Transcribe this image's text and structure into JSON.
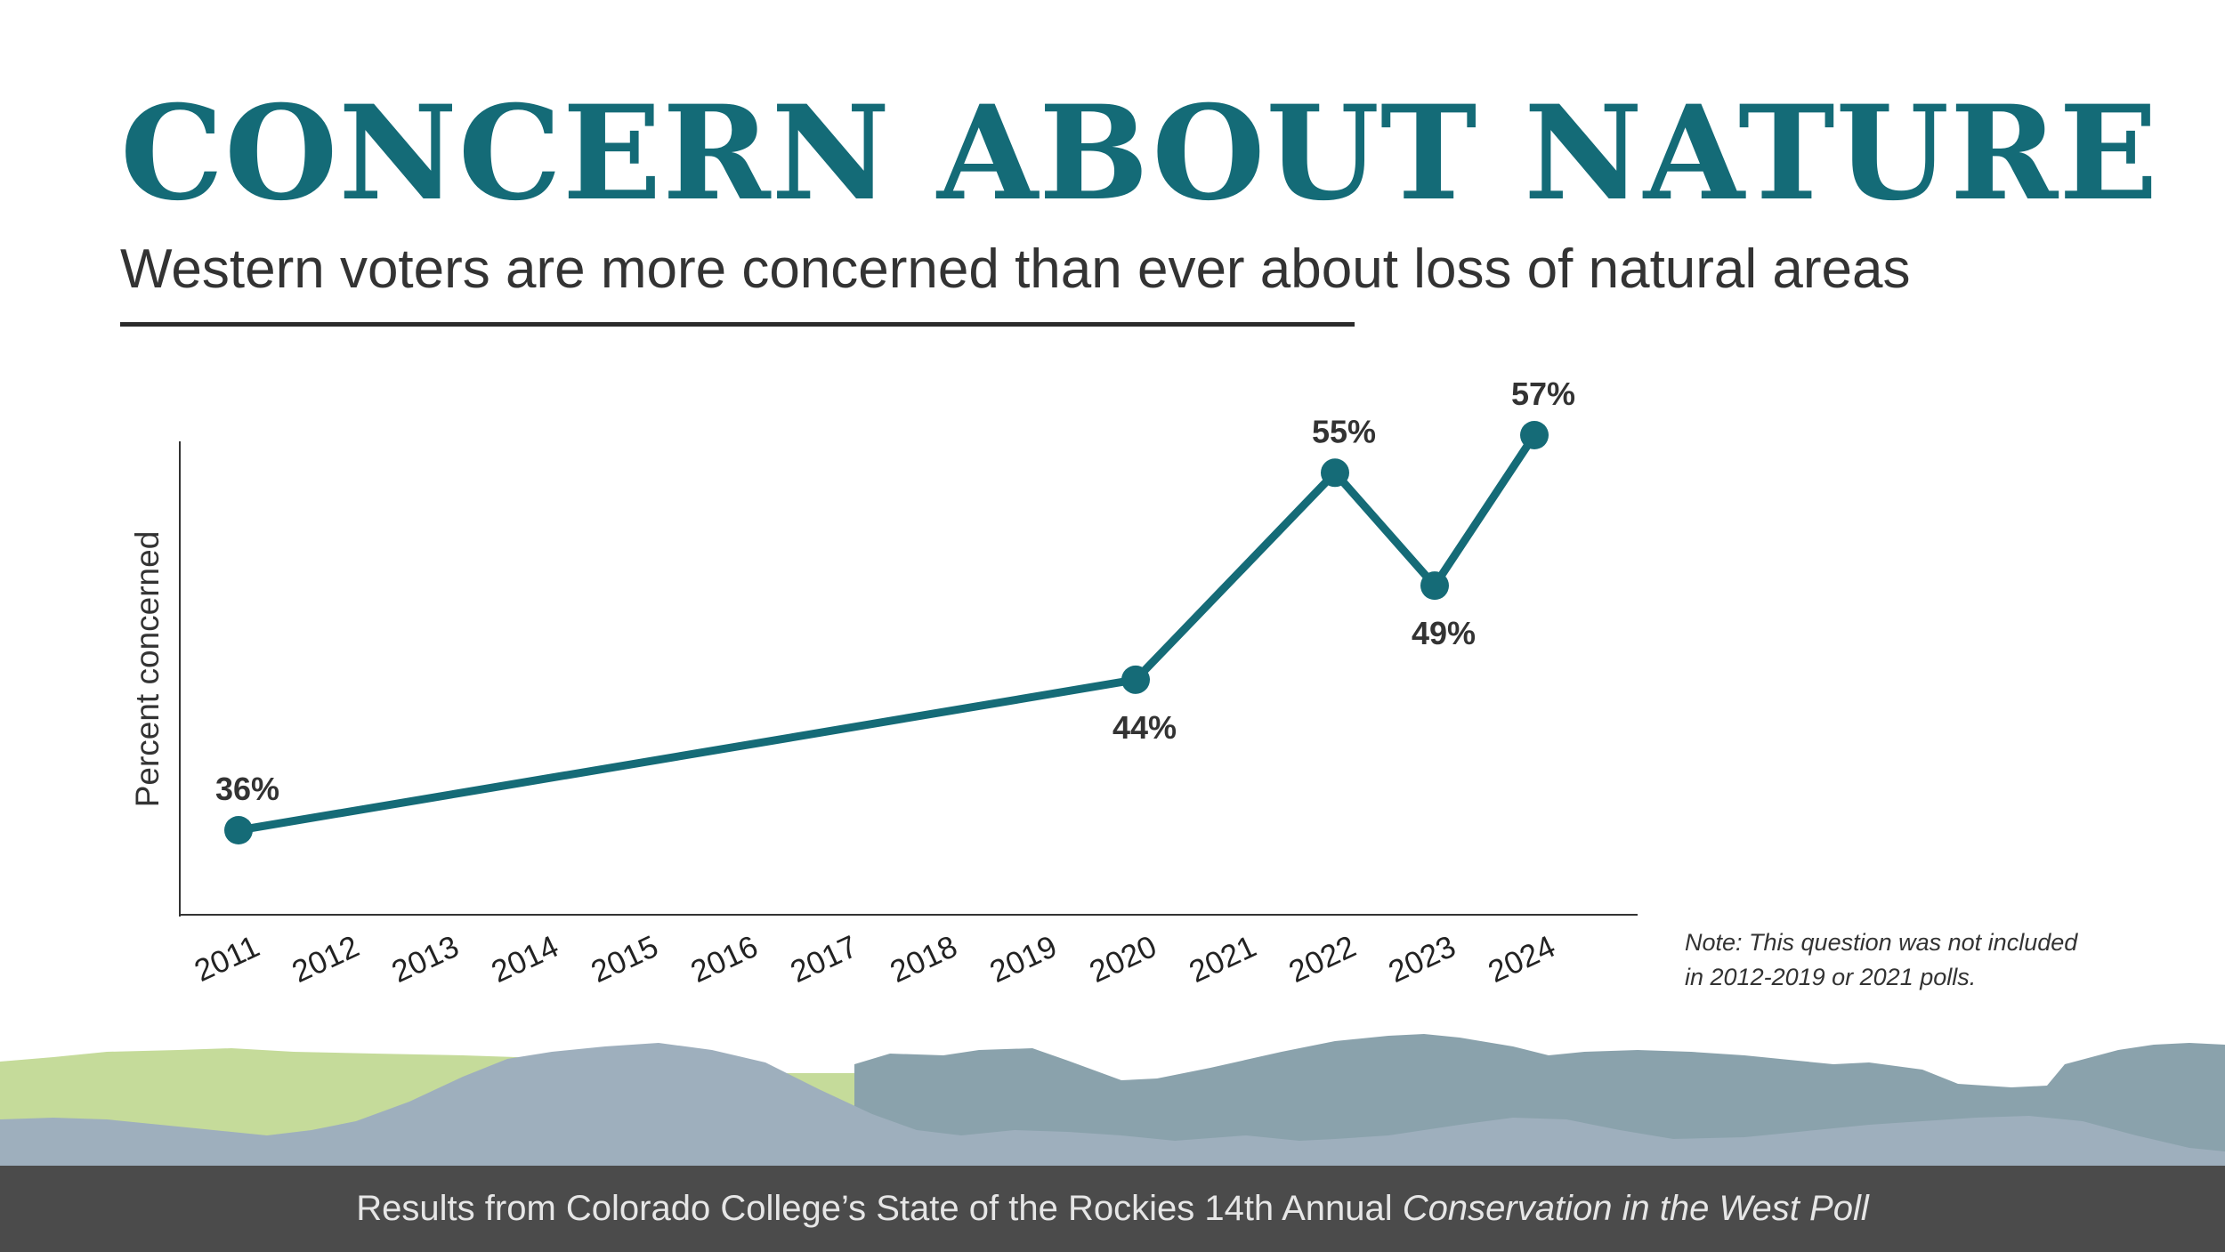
{
  "header": {
    "title": "CONCERN ABOUT NATURE",
    "subtitle": "Western voters are more concerned than ever about loss of natural areas"
  },
  "chart_data": {
    "type": "line",
    "title": "",
    "xlabel": "",
    "ylabel": "Percent concerned",
    "categories": [
      "2011",
      "2012",
      "2013",
      "2014",
      "2015",
      "2016",
      "2017",
      "2018",
      "2019",
      "2020",
      "2021",
      "2022",
      "2023",
      "2024"
    ],
    "series": [
      {
        "points": [
          {
            "x": "2011",
            "y": 36,
            "label": "36%"
          },
          {
            "x": "2020",
            "y": 44,
            "label": "44%"
          },
          {
            "x": "2022",
            "y": 55,
            "label": "55%"
          },
          {
            "x": "2023",
            "y": 49,
            "label": "49%"
          },
          {
            "x": "2024",
            "y": 57,
            "label": "57%"
          }
        ],
        "color": "#156b77"
      }
    ],
    "ylim": [
      30,
      60
    ],
    "grid": false,
    "legend": "none"
  },
  "note": {
    "line1": "Note: This question was not included",
    "line2": "in 2012-2019 or 2021 polls."
  },
  "footer": {
    "prefix": "Results from Colorado College’s State of the Rockies 14th Annual ",
    "poll_name": "Conservation in the West Poll"
  },
  "colors": {
    "accent": "#146b77",
    "text": "#333333",
    "footer_bg": "#4b4b4b",
    "mountain_green": "#c5db9a",
    "mountain_slate": "#8aa2ac",
    "mountain_blue": "#9eafbd"
  }
}
